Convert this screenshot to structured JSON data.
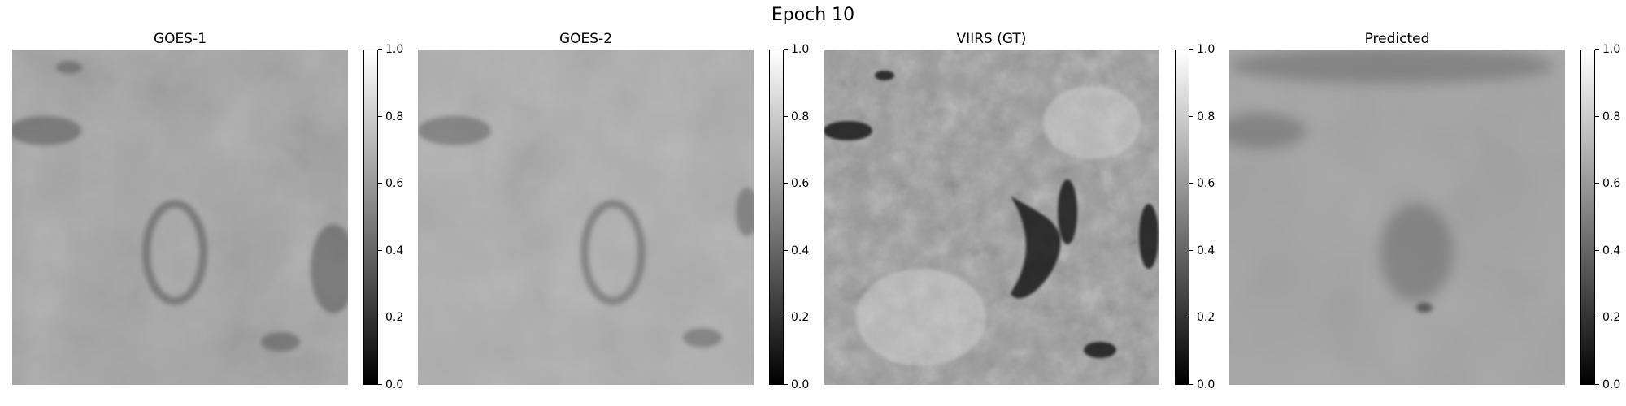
{
  "title": "Epoch 10",
  "panels": [
    {
      "title": "GOES-1",
      "base": "#9b9b9b",
      "blur": 3,
      "freq": 0.012
    },
    {
      "title": "GOES-2",
      "base": "#a1a1a1",
      "blur": 3,
      "freq": 0.012
    },
    {
      "title": "VIIRS (GT)",
      "base": "#8c8c8c",
      "blur": 0.6,
      "freq": 0.03
    },
    {
      "title": "Predicted",
      "base": "#9a9a9a",
      "blur": 8,
      "freq": 0.008
    }
  ],
  "colorbar": {
    "ticks": [
      "0.0",
      "0.2",
      "0.4",
      "0.6",
      "0.8",
      "1.0"
    ],
    "colormap": "gray"
  }
}
